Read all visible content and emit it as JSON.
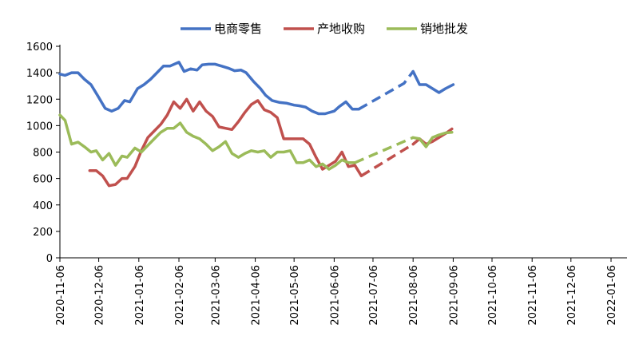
{
  "chart_data": {
    "type": "line",
    "title": "",
    "xlabel": "",
    "ylabel": "",
    "ylim": [
      0,
      1600
    ],
    "y_ticks": [
      0,
      200,
      400,
      600,
      800,
      1000,
      1200,
      1400,
      1600
    ],
    "x_range": [
      "2020-11-06",
      "2022-01-27"
    ],
    "x_ticks": [
      "2020-11-06",
      "2020-12-06",
      "2021-01-06",
      "2021-02-06",
      "2021-03-06",
      "2021-04-06",
      "2021-05-06",
      "2021-06-06",
      "2021-07-06",
      "2021-08-06",
      "2021-09-06",
      "2021-10-06",
      "2021-11-06",
      "2021-12-06",
      "2022-01-06"
    ],
    "grid": false,
    "legend_position": "top",
    "series": [
      {
        "name": "电商零售",
        "color": "#4472C4",
        "solid": [
          [
            "2020-11-06",
            1390
          ],
          [
            "2020-11-10",
            1380
          ],
          [
            "2020-11-15",
            1400
          ],
          [
            "2020-11-20",
            1400
          ],
          [
            "2020-11-25",
            1350
          ],
          [
            "2020-11-30",
            1310
          ],
          [
            "2020-12-05",
            1230
          ],
          [
            "2020-12-11",
            1130
          ],
          [
            "2020-12-16",
            1110
          ],
          [
            "2020-12-21",
            1130
          ],
          [
            "2020-12-26",
            1190
          ],
          [
            "2020-12-30",
            1180
          ],
          [
            "2021-01-05",
            1280
          ],
          [
            "2021-01-10",
            1310
          ],
          [
            "2021-01-15",
            1350
          ],
          [
            "2021-01-20",
            1400
          ],
          [
            "2021-01-25",
            1450
          ],
          [
            "2021-01-30",
            1450
          ],
          [
            "2021-02-06",
            1480
          ],
          [
            "2021-02-10",
            1410
          ],
          [
            "2021-02-15",
            1430
          ],
          [
            "2021-02-20",
            1420
          ],
          [
            "2021-02-24",
            1460
          ],
          [
            "2021-03-01",
            1465
          ],
          [
            "2021-03-06",
            1465
          ],
          [
            "2021-03-11",
            1450
          ],
          [
            "2021-03-16",
            1435
          ],
          [
            "2021-03-21",
            1415
          ],
          [
            "2021-03-26",
            1420
          ],
          [
            "2021-03-30",
            1400
          ],
          [
            "2021-04-05",
            1330
          ],
          [
            "2021-04-10",
            1280
          ],
          [
            "2021-04-14",
            1230
          ],
          [
            "2021-04-19",
            1190
          ],
          [
            "2021-04-25",
            1175
          ],
          [
            "2021-04-30",
            1170
          ],
          [
            "2021-05-06",
            1155
          ],
          [
            "2021-05-10",
            1150
          ],
          [
            "2021-05-15",
            1140
          ],
          [
            "2021-05-20",
            1110
          ],
          [
            "2021-05-25",
            1090
          ],
          [
            "2021-05-30",
            1090
          ],
          [
            "2021-06-06",
            1110
          ],
          [
            "2021-06-10",
            1145
          ],
          [
            "2021-06-15",
            1180
          ],
          [
            "2021-06-20",
            1125
          ],
          [
            "2021-06-25",
            1125
          ]
        ],
        "projected": [
          [
            "2021-06-25",
            1125
          ],
          [
            "2021-07-30",
            1320
          ],
          [
            "2021-08-06",
            1410
          ]
        ],
        "solid_after": [
          [
            "2021-08-06",
            1410
          ],
          [
            "2021-08-11",
            1310
          ],
          [
            "2021-08-16",
            1310
          ],
          [
            "2021-08-21",
            1280
          ],
          [
            "2021-08-26",
            1250
          ],
          [
            "2021-08-31",
            1280
          ],
          [
            "2021-09-06",
            1310
          ]
        ]
      },
      {
        "name": "产地收购",
        "color": "#C0504D",
        "solid": [
          [
            "2020-11-29",
            660
          ],
          [
            "2020-12-04",
            660
          ],
          [
            "2020-12-09",
            620
          ],
          [
            "2020-12-14",
            545
          ],
          [
            "2020-12-19",
            555
          ],
          [
            "2020-12-24",
            600
          ],
          [
            "2020-12-28",
            600
          ],
          [
            "2021-01-03",
            690
          ],
          [
            "2021-01-08",
            810
          ],
          [
            "2021-01-13",
            910
          ],
          [
            "2021-01-18",
            960
          ],
          [
            "2021-01-23",
            1010
          ],
          [
            "2021-01-28",
            1080
          ],
          [
            "2021-02-02",
            1180
          ],
          [
            "2021-02-07",
            1130
          ],
          [
            "2021-02-12",
            1200
          ],
          [
            "2021-02-17",
            1110
          ],
          [
            "2021-02-22",
            1180
          ],
          [
            "2021-02-27",
            1110
          ],
          [
            "2021-03-04",
            1070
          ],
          [
            "2021-03-09",
            990
          ],
          [
            "2021-03-14",
            980
          ],
          [
            "2021-03-19",
            970
          ],
          [
            "2021-03-24",
            1030
          ],
          [
            "2021-03-29",
            1100
          ],
          [
            "2021-04-03",
            1160
          ],
          [
            "2021-04-08",
            1190
          ],
          [
            "2021-04-13",
            1120
          ],
          [
            "2021-04-18",
            1100
          ],
          [
            "2021-04-23",
            1060
          ],
          [
            "2021-04-28",
            900
          ],
          [
            "2021-05-03",
            900
          ],
          [
            "2021-05-08",
            900
          ],
          [
            "2021-05-13",
            900
          ],
          [
            "2021-05-18",
            860
          ],
          [
            "2021-05-23",
            760
          ],
          [
            "2021-05-28",
            670
          ],
          [
            "2021-06-02",
            700
          ],
          [
            "2021-06-07",
            730
          ],
          [
            "2021-06-12",
            800
          ],
          [
            "2021-06-17",
            690
          ],
          [
            "2021-06-22",
            700
          ],
          [
            "2021-06-27",
            620
          ]
        ],
        "projected": [
          [
            "2021-06-27",
            620
          ],
          [
            "2021-08-06",
            860
          ]
        ],
        "solid_after": [
          [
            "2021-08-06",
            860
          ],
          [
            "2021-08-11",
            900
          ],
          [
            "2021-08-16",
            860
          ],
          [
            "2021-08-21",
            880
          ],
          [
            "2021-08-26",
            910
          ],
          [
            "2021-08-31",
            940
          ],
          [
            "2021-09-05",
            975
          ]
        ]
      },
      {
        "name": "销地批发",
        "color": "#9BBB59",
        "solid": [
          [
            "2020-11-06",
            1080
          ],
          [
            "2020-11-10",
            1040
          ],
          [
            "2020-11-15",
            860
          ],
          [
            "2020-11-20",
            875
          ],
          [
            "2020-11-25",
            840
          ],
          [
            "2020-11-30",
            800
          ],
          [
            "2020-12-04",
            810
          ],
          [
            "2020-12-09",
            740
          ],
          [
            "2020-12-14",
            790
          ],
          [
            "2020-12-19",
            700
          ],
          [
            "2020-12-24",
            770
          ],
          [
            "2020-12-28",
            760
          ],
          [
            "2021-01-03",
            830
          ],
          [
            "2021-01-08",
            800
          ],
          [
            "2021-01-13",
            850
          ],
          [
            "2021-01-18",
            900
          ],
          [
            "2021-01-23",
            950
          ],
          [
            "2021-01-28",
            980
          ],
          [
            "2021-02-02",
            980
          ],
          [
            "2021-02-07",
            1020
          ],
          [
            "2021-02-12",
            950
          ],
          [
            "2021-02-17",
            920
          ],
          [
            "2021-02-22",
            900
          ],
          [
            "2021-02-27",
            860
          ],
          [
            "2021-03-04",
            810
          ],
          [
            "2021-03-09",
            840
          ],
          [
            "2021-03-14",
            880
          ],
          [
            "2021-03-19",
            790
          ],
          [
            "2021-03-24",
            760
          ],
          [
            "2021-03-29",
            790
          ],
          [
            "2021-04-03",
            810
          ],
          [
            "2021-04-08",
            800
          ],
          [
            "2021-04-13",
            810
          ],
          [
            "2021-04-18",
            760
          ],
          [
            "2021-04-23",
            800
          ],
          [
            "2021-04-28",
            800
          ],
          [
            "2021-05-03",
            810
          ],
          [
            "2021-05-08",
            720
          ],
          [
            "2021-05-13",
            720
          ],
          [
            "2021-05-18",
            740
          ],
          [
            "2021-05-23",
            690
          ],
          [
            "2021-05-28",
            710
          ],
          [
            "2021-06-02",
            670
          ],
          [
            "2021-06-07",
            700
          ],
          [
            "2021-06-12",
            740
          ],
          [
            "2021-06-17",
            720
          ],
          [
            "2021-06-22",
            720
          ]
        ],
        "projected": [
          [
            "2021-06-22",
            720
          ],
          [
            "2021-08-06",
            910
          ]
        ],
        "solid_after": [
          [
            "2021-08-06",
            910
          ],
          [
            "2021-08-11",
            900
          ],
          [
            "2021-08-16",
            840
          ],
          [
            "2021-08-21",
            910
          ],
          [
            "2021-08-26",
            930
          ],
          [
            "2021-08-31",
            945
          ],
          [
            "2021-09-05",
            950
          ]
        ]
      }
    ]
  }
}
